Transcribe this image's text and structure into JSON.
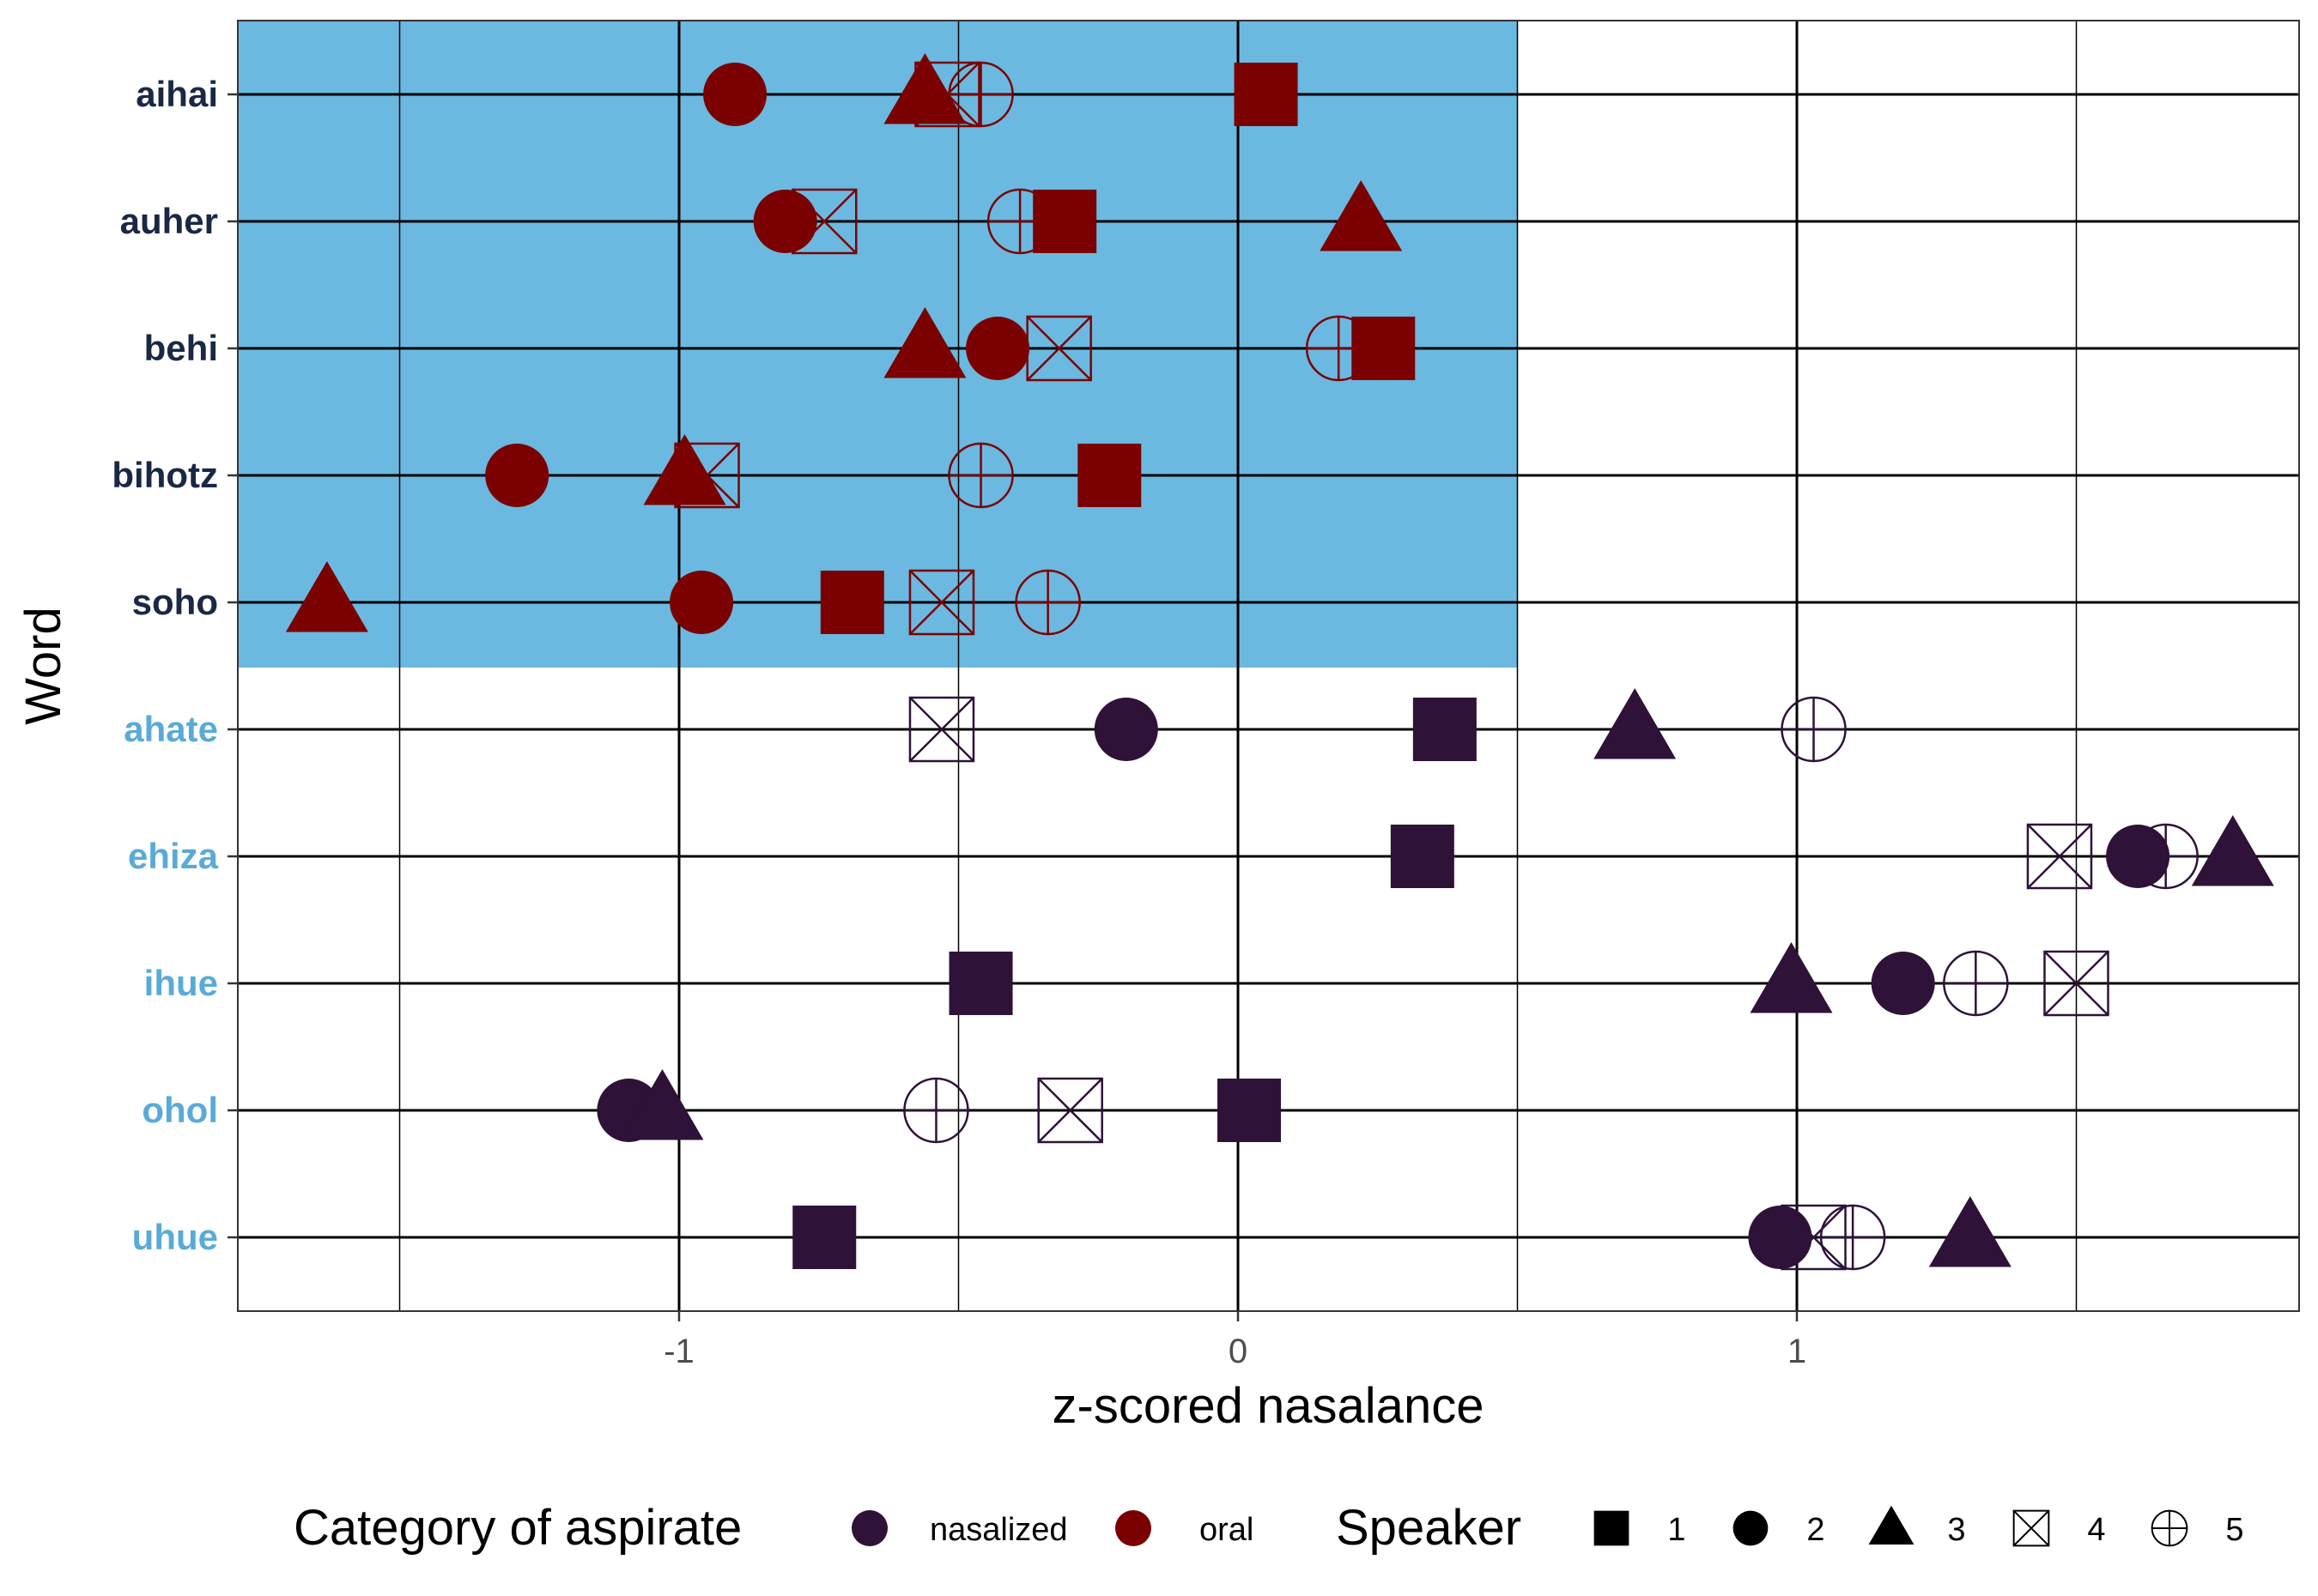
{
  "chart_data": {
    "type": "scatter",
    "xlabel": "z-scored nasalance",
    "ylabel": "Word",
    "xlim": [
      -1.79,
      1.91
    ],
    "x_ticks": [
      -1,
      0,
      1
    ],
    "x_tick_labels": [
      "-1",
      "0",
      "1"
    ],
    "grid": true,
    "highlight": {
      "x_range": [
        -1.79,
        0.5
      ],
      "words": [
        "aihai",
        "auher",
        "behi",
        "bihotz",
        "soho"
      ],
      "color": "#6BB9E0"
    },
    "legend_position": "bottom",
    "colors": {
      "nasalized": "#2E1238",
      "oral": "#7B0000",
      "nasalized_label": "#5AAAD8",
      "oral_label": "#1A2845"
    },
    "words": [
      {
        "word": "aihai",
        "category": "oral",
        "points": {
          "1": 0.05,
          "2": -0.9,
          "3": -0.56,
          "4": -0.52,
          "5": -0.46
        }
      },
      {
        "word": "auher",
        "category": "oral",
        "points": {
          "1": -0.31,
          "2": -0.81,
          "3": 0.22,
          "4": -0.74,
          "5": -0.39
        }
      },
      {
        "word": "behi",
        "category": "oral",
        "points": {
          "1": 0.26,
          "2": -0.43,
          "3": -0.56,
          "4": -0.32,
          "5": 0.18
        }
      },
      {
        "word": "bihotz",
        "category": "oral",
        "points": {
          "1": -0.23,
          "2": -1.29,
          "3": -0.99,
          "4": -0.95,
          "5": -0.46
        }
      },
      {
        "word": "soho",
        "category": "oral",
        "points": {
          "1": -0.69,
          "2": -0.96,
          "3": -1.63,
          "4": -0.53,
          "5": -0.34
        }
      },
      {
        "word": "ahate",
        "category": "nasalized",
        "points": {
          "1": 0.37,
          "2": -0.2,
          "3": 0.71,
          "4": -0.53,
          "5": 1.03
        }
      },
      {
        "word": "ehiza",
        "category": "nasalized",
        "points": {
          "1": 0.33,
          "2": 1.61,
          "3": 1.78,
          "4": 1.47,
          "5": 1.66
        }
      },
      {
        "word": "ihue",
        "category": "nasalized",
        "points": {
          "1": -0.46,
          "2": 1.19,
          "3": 0.99,
          "4": 1.5,
          "5": 1.32
        }
      },
      {
        "word": "ohol",
        "category": "nasalized",
        "points": {
          "1": 0.02,
          "2": -1.09,
          "3": -1.03,
          "4": -0.3,
          "5": -0.54
        }
      },
      {
        "word": "uhue",
        "category": "nasalized",
        "points": {
          "1": -0.74,
          "2": 0.97,
          "3": 1.31,
          "4": 1.03,
          "5": 1.1
        }
      }
    ]
  },
  "legend": {
    "category_title": "Category of aspirate",
    "category_items": [
      {
        "key": "nasalized",
        "label": "nasalized"
      },
      {
        "key": "oral",
        "label": "oral"
      }
    ],
    "speaker_title": "Speaker",
    "speaker_items": [
      {
        "key": "1",
        "label": "1",
        "shape": "square"
      },
      {
        "key": "2",
        "label": "2",
        "shape": "circle"
      },
      {
        "key": "3",
        "label": "3",
        "shape": "triangle"
      },
      {
        "key": "4",
        "label": "4",
        "shape": "boxed-x"
      },
      {
        "key": "5",
        "label": "5",
        "shape": "circled-plus"
      }
    ]
  }
}
